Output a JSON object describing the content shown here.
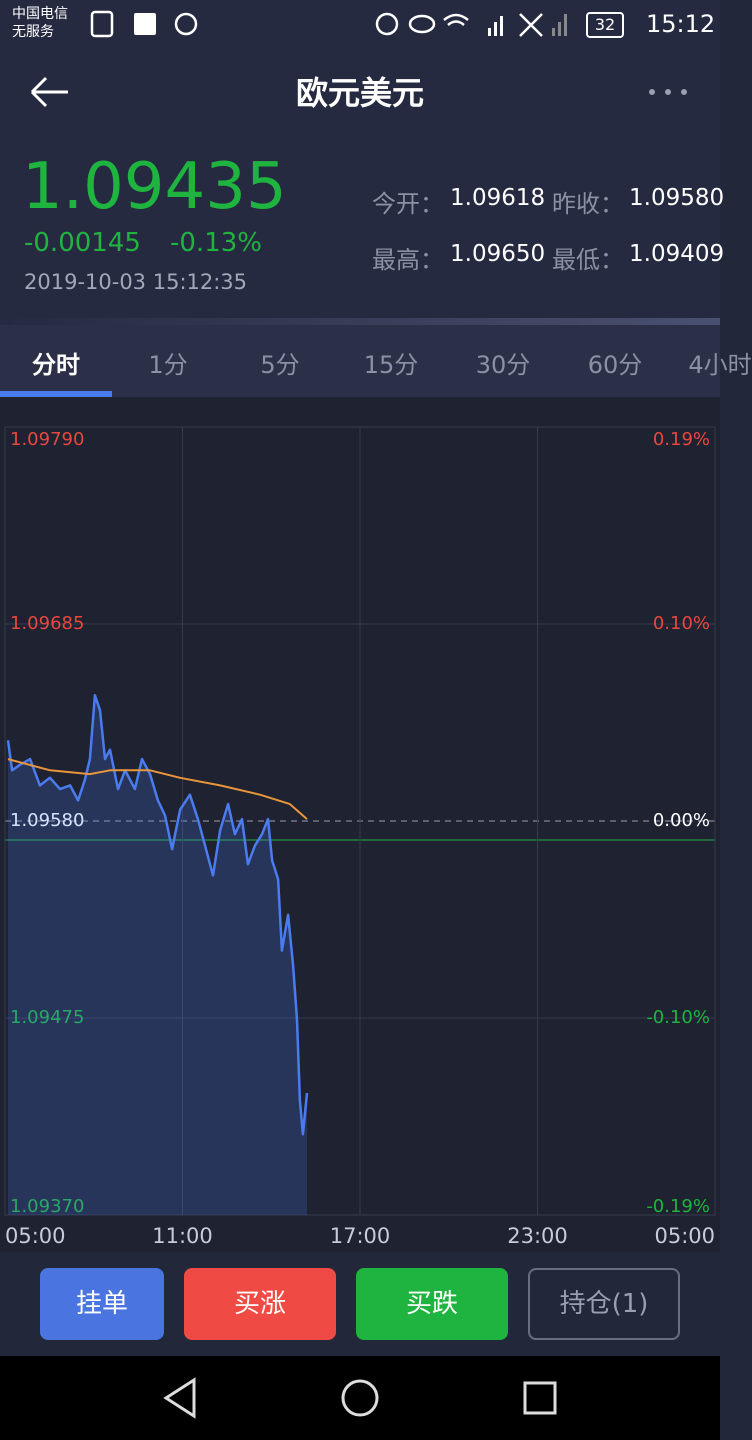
{
  "status_bar": {
    "carrier": "中国电信",
    "service": "无服务",
    "battery": "32",
    "time": "15:12"
  },
  "header": {
    "title": "欧元美元"
  },
  "quote": {
    "price": "1.09435",
    "change": "-0.00145",
    "change_pct": "-0.13%",
    "timestamp": "2019-10-03 15:12:35",
    "stats": [
      {
        "label": "今开：",
        "value": "1.09618"
      },
      {
        "label": "昨收：",
        "value": "1.09580"
      },
      {
        "label": "最高：",
        "value": "1.09650"
      },
      {
        "label": "最低：",
        "value": "1.09409"
      }
    ]
  },
  "tabs": [
    "分时",
    "1分",
    "5分",
    "15分",
    "30分",
    "60分",
    "4小时"
  ],
  "chart_data": {
    "type": "line",
    "xlim": [
      5,
      29
    ],
    "xticks": [
      {
        "value": 5,
        "label": "05:00"
      },
      {
        "value": 11,
        "label": "11:00"
      },
      {
        "value": 17,
        "label": "17:00"
      },
      {
        "value": 23,
        "label": "23:00"
      },
      {
        "value": 29,
        "label": "05:00"
      }
    ],
    "ylim": [
      1.0937,
      1.0979
    ],
    "yticks": [
      {
        "value": 1.0979,
        "label": "1.09790"
      },
      1.09685,
      {
        "value": 1.0958,
        "label": "1.09580"
      },
      1.09475,
      {
        "value": 1.0937,
        "label": "1.09370"
      }
    ],
    "y2lim": [
      -0.1916,
      0.1916
    ],
    "y2ticks": [
      {
        "value": 0.1916,
        "label": "0.19%"
      },
      {
        "value": 0.0958,
        "label": "0.10%"
      },
      {
        "value": 0,
        "label": "0.00%"
      },
      {
        "value": -0.0958,
        "label": "-0.10%"
      },
      {
        "value": -0.1916,
        "label": "-0.19%"
      }
    ],
    "grid": true,
    "series": [
      {
        "color": "#4a7cf0",
        "area": true,
        "x": [
          5.1,
          5.24,
          5.51,
          5.85,
          6.18,
          6.52,
          6.86,
          7.2,
          7.47,
          7.7,
          7.87,
          8.04,
          8.21,
          8.38,
          8.55,
          8.82,
          9.06,
          9.39,
          9.63,
          9.9,
          10.17,
          10.41,
          10.65,
          10.92,
          11.25,
          11.52,
          11.76,
          12.03,
          12.27,
          12.54,
          12.77,
          13.01,
          13.21,
          13.45,
          13.69,
          13.89,
          14.03,
          14.23,
          14.36,
          14.57,
          14.74,
          14.87,
          14.97,
          15.07,
          15.21
        ],
        "values": [
          1.09623,
          1.09607,
          1.0961,
          1.09613,
          1.09599,
          1.09603,
          1.09597,
          1.09599,
          1.09591,
          1.09602,
          1.09613,
          1.09647,
          1.09639,
          1.09613,
          1.09618,
          1.09597,
          1.09607,
          1.09597,
          1.09613,
          1.09605,
          1.09591,
          1.09583,
          1.09565,
          1.09586,
          1.09594,
          1.09581,
          1.09567,
          1.09551,
          1.09575,
          1.09589,
          1.09573,
          1.09581,
          1.09557,
          1.09567,
          1.09573,
          1.09581,
          1.09559,
          1.09549,
          1.09511,
          1.0953,
          1.09503,
          1.09474,
          1.09431,
          1.09413,
          1.09435
        ]
      },
      {
        "color": "#e8963c",
        "x": [
          5.1,
          6.52,
          7.87,
          8.55,
          9.9,
          10.92,
          12.27,
          13.62,
          14.63,
          15.21
        ],
        "values": [
          1.09613,
          1.09607,
          1.09605,
          1.09607,
          1.09607,
          1.09603,
          1.09599,
          1.09594,
          1.09589,
          1.09581
        ]
      }
    ]
  },
  "buttons": [
    "挂单",
    "买涨",
    "买跌",
    "持仓(1)"
  ]
}
